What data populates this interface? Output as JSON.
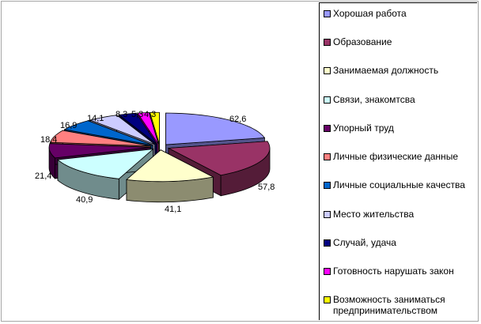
{
  "chart_data": {
    "type": "pie",
    "style": "3d-exploded",
    "legend_position": "right",
    "title": "",
    "slices": [
      {
        "label": "Хорошая работа",
        "value": 62.6,
        "value_label": "62,6",
        "color": "#9999ff"
      },
      {
        "label": "Образование",
        "value": 57.8,
        "value_label": "57,8",
        "color": "#993366"
      },
      {
        "label": "Занимаемая должность",
        "value": 41.1,
        "value_label": "41,1",
        "color": "#ffffcc"
      },
      {
        "label": "Связи, знакомтсва",
        "value": 40.9,
        "value_label": "40,9",
        "color": "#ccffff"
      },
      {
        "label": "Упорный труд",
        "value": 21.4,
        "value_label": "21,4",
        "color": "#660066"
      },
      {
        "label": "Личные физические данные",
        "value": 18.4,
        "value_label": "18,4",
        "color": "#ff8080"
      },
      {
        "label": "Личные социальные качества",
        "value": 16.9,
        "value_label": "16,9",
        "color": "#0066cc"
      },
      {
        "label": "Место жительства",
        "value": 14.1,
        "value_label": "14,1",
        "color": "#ccccff"
      },
      {
        "label": "Случай, удача",
        "value": 8.3,
        "value_label": "8,3",
        "color": "#000080"
      },
      {
        "label": "Готовность нарушать закон",
        "value": 5.3,
        "value_label": "5,3",
        "color": "#ff00ff"
      },
      {
        "label": "Возможность заниматься предпринимательством",
        "value": 4.3,
        "value_label": "4,3",
        "color": "#ffff00"
      }
    ]
  }
}
